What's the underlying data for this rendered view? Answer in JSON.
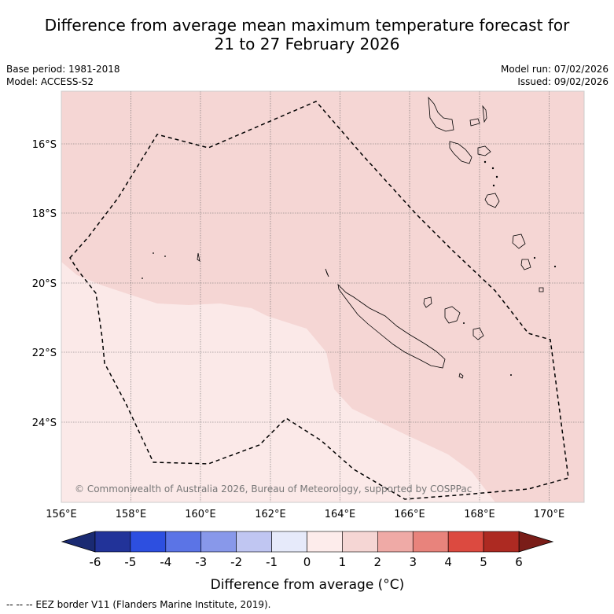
{
  "title": {
    "line1": "Difference from average mean maximum temperature forecast for",
    "line2": "21 to 27 February 2026"
  },
  "meta": {
    "base_period": "Base period: 1981-2018",
    "model": "Model: ACCESS-S2",
    "model_run": "Model run: 07/02/2026",
    "issued": "Issued: 09/02/2026"
  },
  "map": {
    "lon_range": [
      156,
      171
    ],
    "lat_range": [
      -26.3,
      -14.5
    ],
    "lon_ticks": [
      "156°E",
      "158°E",
      "160°E",
      "162°E",
      "164°E",
      "166°E",
      "168°E",
      "170°E"
    ],
    "lat_ticks": [
      "16°S",
      "18°S",
      "20°S",
      "22°S",
      "24°S"
    ],
    "copyright": "© Commonwealth of Australia 2026, Bureau of Meteorology, supported by COSPPac",
    "region_classes": [
      {
        "range": "1 to 2",
        "color": "#f5d6d4"
      },
      {
        "range": "0 to 1",
        "color": "#fbe9e8"
      }
    ]
  },
  "colorbar": {
    "ticks": [
      "-6",
      "-5",
      "-4",
      "-3",
      "-2",
      "-1",
      "0",
      "1",
      "2",
      "3",
      "4",
      "5",
      "6"
    ],
    "colors": [
      "#223399",
      "#2d4fe0",
      "#5b74e6",
      "#8898ea",
      "#c0c6f2",
      "#e6eafa",
      "#fdeceb",
      "#f5d6d4",
      "#efaaa6",
      "#e8837c",
      "#dc4a40",
      "#ad2a22"
    ],
    "under_color": "#1a2a72",
    "over_color": "#7a1d18",
    "label": "Difference from average (°C)"
  },
  "footnote": "--  --  -- EEZ border V11 (Flanders Marine Institute, 2019)."
}
